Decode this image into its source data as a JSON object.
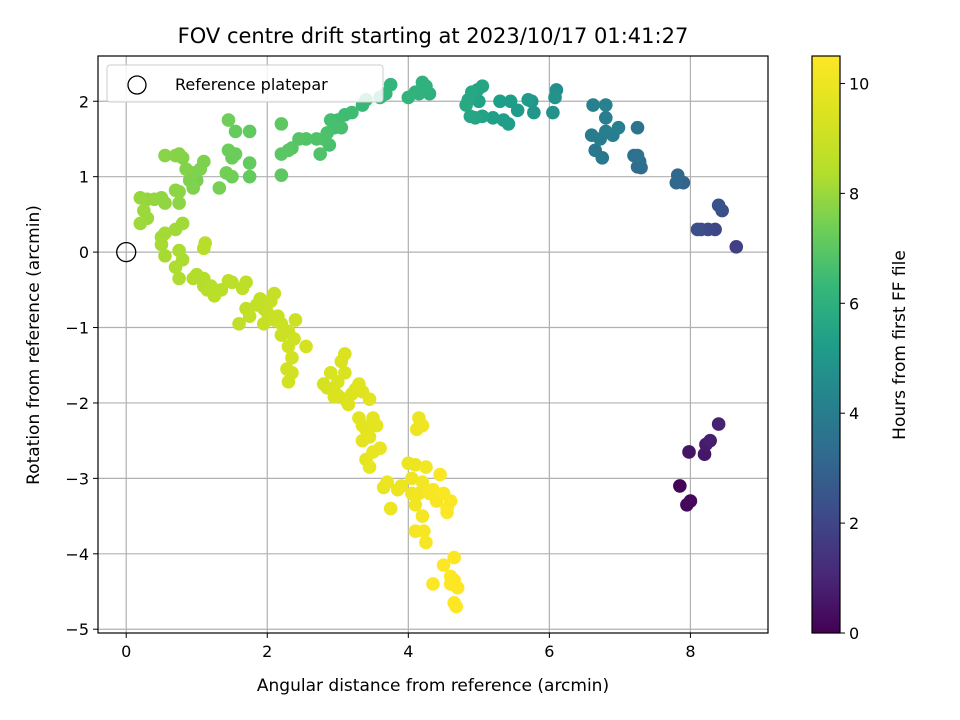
{
  "chart_data": {
    "type": "scatter",
    "title": "FOV centre drift starting at 2023/10/17 01:41:27",
    "xlabel": "Angular distance from reference (arcmin)",
    "ylabel": "Rotation from reference (arcmin)",
    "xlim": [
      -0.4,
      9.1
    ],
    "ylim": [
      -5.05,
      2.6
    ],
    "xticks": [
      0,
      2,
      4,
      6,
      8
    ],
    "yticks": [
      -5,
      -4,
      -3,
      -2,
      -1,
      0,
      1,
      2
    ],
    "grid": true,
    "legend": {
      "placement": "top-left",
      "entries": [
        "Reference platepar"
      ]
    },
    "reference_point": {
      "x": 0,
      "y": 0
    },
    "colorbar": {
      "label": "Hours from first FF file",
      "range": [
        0,
        10.5
      ],
      "ticks": [
        0,
        2,
        4,
        6,
        8,
        10
      ],
      "colormap": "viridis"
    },
    "points": [
      {
        "x": 7.85,
        "y": -3.1,
        "c": 0.1
      },
      {
        "x": 7.95,
        "y": -3.35,
        "c": 0.15
      },
      {
        "x": 8.0,
        "y": -3.3,
        "c": 0.2
      },
      {
        "x": 7.98,
        "y": -2.65,
        "c": 0.5
      },
      {
        "x": 8.2,
        "y": -2.68,
        "c": 0.6
      },
      {
        "x": 8.22,
        "y": -2.55,
        "c": 0.7
      },
      {
        "x": 8.28,
        "y": -2.5,
        "c": 0.8
      },
      {
        "x": 8.4,
        "y": -2.28,
        "c": 0.9
      },
      {
        "x": 8.65,
        "y": 0.07,
        "c": 1.8
      },
      {
        "x": 8.35,
        "y": 0.3,
        "c": 2.0
      },
      {
        "x": 8.25,
        "y": 0.3,
        "c": 2.1
      },
      {
        "x": 8.15,
        "y": 0.3,
        "c": 2.2
      },
      {
        "x": 8.1,
        "y": 0.3,
        "c": 2.3
      },
      {
        "x": 8.45,
        "y": 0.55,
        "c": 2.3
      },
      {
        "x": 8.4,
        "y": 0.62,
        "c": 2.4
      },
      {
        "x": 7.9,
        "y": 0.92,
        "c": 3.0
      },
      {
        "x": 7.8,
        "y": 0.92,
        "c": 3.1
      },
      {
        "x": 7.82,
        "y": 1.02,
        "c": 3.15
      },
      {
        "x": 7.3,
        "y": 1.12,
        "c": 3.3
      },
      {
        "x": 7.25,
        "y": 1.13,
        "c": 3.35
      },
      {
        "x": 7.28,
        "y": 1.2,
        "c": 3.4
      },
      {
        "x": 7.2,
        "y": 1.28,
        "c": 3.5
      },
      {
        "x": 7.25,
        "y": 1.28,
        "c": 3.55
      },
      {
        "x": 7.25,
        "y": 1.65,
        "c": 3.6
      },
      {
        "x": 6.75,
        "y": 1.25,
        "c": 3.8
      },
      {
        "x": 6.65,
        "y": 1.35,
        "c": 3.8
      },
      {
        "x": 6.72,
        "y": 1.5,
        "c": 3.9
      },
      {
        "x": 6.6,
        "y": 1.55,
        "c": 3.95
      },
      {
        "x": 6.8,
        "y": 1.6,
        "c": 4.0
      },
      {
        "x": 6.9,
        "y": 1.55,
        "c": 4.0
      },
      {
        "x": 6.8,
        "y": 1.78,
        "c": 4.05
      },
      {
        "x": 6.98,
        "y": 1.65,
        "c": 4.1
      },
      {
        "x": 6.62,
        "y": 1.95,
        "c": 4.1
      },
      {
        "x": 6.8,
        "y": 1.95,
        "c": 4.15
      },
      {
        "x": 6.1,
        "y": 2.15,
        "c": 4.7
      },
      {
        "x": 6.05,
        "y": 1.85,
        "c": 4.8
      },
      {
        "x": 6.08,
        "y": 2.05,
        "c": 4.8
      },
      {
        "x": 5.78,
        "y": 1.85,
        "c": 5.0
      },
      {
        "x": 5.75,
        "y": 2.0,
        "c": 5.0
      },
      {
        "x": 5.7,
        "y": 2.02,
        "c": 5.1
      },
      {
        "x": 5.55,
        "y": 1.88,
        "c": 5.15
      },
      {
        "x": 5.45,
        "y": 2.0,
        "c": 5.2
      },
      {
        "x": 5.42,
        "y": 1.7,
        "c": 5.25
      },
      {
        "x": 5.35,
        "y": 1.75,
        "c": 5.3
      },
      {
        "x": 5.3,
        "y": 2.0,
        "c": 5.3
      },
      {
        "x": 5.2,
        "y": 1.78,
        "c": 5.35
      },
      {
        "x": 5.05,
        "y": 1.8,
        "c": 5.4
      },
      {
        "x": 5.0,
        "y": 2.0,
        "c": 5.45
      },
      {
        "x": 4.98,
        "y": 2.15,
        "c": 5.5
      },
      {
        "x": 5.05,
        "y": 2.2,
        "c": 5.55
      },
      {
        "x": 4.95,
        "y": 1.78,
        "c": 5.55
      },
      {
        "x": 4.88,
        "y": 1.8,
        "c": 5.6
      },
      {
        "x": 4.85,
        "y": 2.02,
        "c": 5.6
      },
      {
        "x": 4.9,
        "y": 2.12,
        "c": 5.65
      },
      {
        "x": 4.82,
        "y": 1.95,
        "c": 5.7
      },
      {
        "x": 4.3,
        "y": 2.1,
        "c": 6.0
      },
      {
        "x": 4.2,
        "y": 2.25,
        "c": 6.05
      },
      {
        "x": 4.25,
        "y": 2.2,
        "c": 6.05
      },
      {
        "x": 4.15,
        "y": 2.1,
        "c": 6.1
      },
      {
        "x": 4.1,
        "y": 2.12,
        "c": 6.1
      },
      {
        "x": 4.0,
        "y": 2.05,
        "c": 6.15
      },
      {
        "x": 3.75,
        "y": 2.22,
        "c": 6.2
      },
      {
        "x": 3.68,
        "y": 2.1,
        "c": 6.2
      },
      {
        "x": 3.6,
        "y": 2.05,
        "c": 6.25
      },
      {
        "x": 3.4,
        "y": 2.02,
        "c": 6.3
      },
      {
        "x": 3.35,
        "y": 1.95,
        "c": 6.35
      },
      {
        "x": 3.2,
        "y": 1.85,
        "c": 6.5
      },
      {
        "x": 3.1,
        "y": 1.82,
        "c": 6.5
      },
      {
        "x": 3.0,
        "y": 1.75,
        "c": 6.55
      },
      {
        "x": 2.95,
        "y": 1.65,
        "c": 6.6
      },
      {
        "x": 2.9,
        "y": 1.75,
        "c": 6.6
      },
      {
        "x": 3.05,
        "y": 1.65,
        "c": 6.65
      },
      {
        "x": 2.85,
        "y": 1.58,
        "c": 6.7
      },
      {
        "x": 2.88,
        "y": 1.42,
        "c": 6.7
      },
      {
        "x": 2.8,
        "y": 1.5,
        "c": 6.75
      },
      {
        "x": 2.7,
        "y": 1.5,
        "c": 6.8
      },
      {
        "x": 2.75,
        "y": 1.3,
        "c": 6.8
      },
      {
        "x": 2.55,
        "y": 1.5,
        "c": 6.85
      },
      {
        "x": 2.45,
        "y": 1.5,
        "c": 6.9
      },
      {
        "x": 2.35,
        "y": 1.38,
        "c": 6.95
      },
      {
        "x": 2.3,
        "y": 1.35,
        "c": 7.0
      },
      {
        "x": 2.2,
        "y": 1.3,
        "c": 7.0
      },
      {
        "x": 2.2,
        "y": 1.02,
        "c": 7.05
      },
      {
        "x": 2.2,
        "y": 1.7,
        "c": 7.05
      },
      {
        "x": 1.75,
        "y": 1.6,
        "c": 7.1
      },
      {
        "x": 1.75,
        "y": 1.18,
        "c": 7.15
      },
      {
        "x": 1.75,
        "y": 1.0,
        "c": 7.15
      },
      {
        "x": 1.55,
        "y": 1.6,
        "c": 7.2
      },
      {
        "x": 1.55,
        "y": 1.3,
        "c": 7.25
      },
      {
        "x": 1.5,
        "y": 1.25,
        "c": 7.25
      },
      {
        "x": 1.45,
        "y": 1.35,
        "c": 7.3
      },
      {
        "x": 1.45,
        "y": 1.75,
        "c": 7.35
      },
      {
        "x": 1.5,
        "y": 1.0,
        "c": 7.35
      },
      {
        "x": 1.42,
        "y": 1.05,
        "c": 7.4
      },
      {
        "x": 1.32,
        "y": 0.85,
        "c": 7.45
      },
      {
        "x": 1.0,
        "y": 0.95,
        "c": 7.5
      },
      {
        "x": 0.9,
        "y": 0.95,
        "c": 7.55
      },
      {
        "x": 0.95,
        "y": 1.05,
        "c": 7.6
      },
      {
        "x": 1.05,
        "y": 1.1,
        "c": 7.6
      },
      {
        "x": 0.85,
        "y": 1.1,
        "c": 7.65
      },
      {
        "x": 0.8,
        "y": 1.25,
        "c": 7.65
      },
      {
        "x": 0.75,
        "y": 1.3,
        "c": 7.7
      },
      {
        "x": 0.7,
        "y": 1.28,
        "c": 7.7
      },
      {
        "x": 0.55,
        "y": 1.28,
        "c": 7.75
      },
      {
        "x": 0.75,
        "y": 0.8,
        "c": 7.75
      },
      {
        "x": 0.7,
        "y": 0.82,
        "c": 7.8
      },
      {
        "x": 0.75,
        "y": 0.65,
        "c": 7.8
      },
      {
        "x": 0.55,
        "y": 0.65,
        "c": 7.85
      },
      {
        "x": 0.5,
        "y": 0.72,
        "c": 7.85
      },
      {
        "x": 0.4,
        "y": 0.7,
        "c": 7.9
      },
      {
        "x": 0.3,
        "y": 0.7,
        "c": 7.9
      },
      {
        "x": 0.2,
        "y": 0.72,
        "c": 7.95
      },
      {
        "x": 0.25,
        "y": 0.55,
        "c": 8.0
      },
      {
        "x": 0.3,
        "y": 0.45,
        "c": 8.0
      },
      {
        "x": 0.2,
        "y": 0.38,
        "c": 8.05
      },
      {
        "x": 1.1,
        "y": 1.2,
        "c": 7.55
      },
      {
        "x": 0.95,
        "y": 0.85,
        "c": 7.6
      },
      {
        "x": 0.8,
        "y": 0.38,
        "c": 8.1
      },
      {
        "x": 0.7,
        "y": 0.3,
        "c": 8.1
      },
      {
        "x": 0.55,
        "y": 0.25,
        "c": 8.15
      },
      {
        "x": 0.5,
        "y": 0.2,
        "c": 8.15
      },
      {
        "x": 0.5,
        "y": 0.1,
        "c": 8.2
      },
      {
        "x": 0.55,
        "y": -0.05,
        "c": 8.2
      },
      {
        "x": 0.75,
        "y": 0.02,
        "c": 8.25
      },
      {
        "x": 0.8,
        "y": -0.1,
        "c": 8.25
      },
      {
        "x": 0.7,
        "y": -0.2,
        "c": 8.3
      },
      {
        "x": 0.75,
        "y": -0.35,
        "c": 8.3
      },
      {
        "x": 0.95,
        "y": -0.35,
        "c": 8.35
      },
      {
        "x": 1.0,
        "y": -0.3,
        "c": 8.35
      },
      {
        "x": 1.1,
        "y": -0.35,
        "c": 8.4
      },
      {
        "x": 1.1,
        "y": -0.45,
        "c": 8.4
      },
      {
        "x": 1.15,
        "y": -0.5,
        "c": 8.45
      },
      {
        "x": 1.2,
        "y": -0.45,
        "c": 8.45
      },
      {
        "x": 1.1,
        "y": 0.05,
        "c": 8.5
      },
      {
        "x": 1.12,
        "y": 0.12,
        "c": 8.5
      },
      {
        "x": 1.25,
        "y": -0.58,
        "c": 8.55
      },
      {
        "x": 1.35,
        "y": -0.5,
        "c": 8.55
      },
      {
        "x": 1.45,
        "y": -0.38,
        "c": 8.6
      },
      {
        "x": 1.5,
        "y": -0.4,
        "c": 8.6
      },
      {
        "x": 1.65,
        "y": -0.48,
        "c": 8.65
      },
      {
        "x": 1.7,
        "y": -0.4,
        "c": 8.65
      },
      {
        "x": 1.6,
        "y": -0.95,
        "c": 8.7
      },
      {
        "x": 1.7,
        "y": -0.75,
        "c": 8.7
      },
      {
        "x": 1.75,
        "y": -0.85,
        "c": 8.75
      },
      {
        "x": 1.85,
        "y": -0.7,
        "c": 8.75
      },
      {
        "x": 1.9,
        "y": -0.62,
        "c": 8.8
      },
      {
        "x": 1.95,
        "y": -0.75,
        "c": 8.8
      },
      {
        "x": 2.0,
        "y": -0.8,
        "c": 8.85
      },
      {
        "x": 2.05,
        "y": -0.65,
        "c": 8.85
      },
      {
        "x": 2.1,
        "y": -0.55,
        "c": 8.9
      },
      {
        "x": 1.95,
        "y": -0.95,
        "c": 8.9
      },
      {
        "x": 2.1,
        "y": -0.9,
        "c": 8.95
      },
      {
        "x": 2.15,
        "y": -0.85,
        "c": 8.95
      },
      {
        "x": 2.2,
        "y": -0.95,
        "c": 9.0
      },
      {
        "x": 2.2,
        "y": -1.1,
        "c": 9.0
      },
      {
        "x": 2.3,
        "y": -1.05,
        "c": 9.05
      },
      {
        "x": 2.4,
        "y": -0.9,
        "c": 9.05
      },
      {
        "x": 2.38,
        "y": -1.15,
        "c": 9.1
      },
      {
        "x": 2.3,
        "y": -1.25,
        "c": 9.1
      },
      {
        "x": 2.35,
        "y": -1.4,
        "c": 9.15
      },
      {
        "x": 2.28,
        "y": -1.55,
        "c": 9.15
      },
      {
        "x": 2.35,
        "y": -1.6,
        "c": 9.2
      },
      {
        "x": 2.3,
        "y": -1.72,
        "c": 9.2
      },
      {
        "x": 2.55,
        "y": -1.25,
        "c": 9.25
      },
      {
        "x": 2.8,
        "y": -1.75,
        "c": 9.3
      },
      {
        "x": 2.85,
        "y": -1.8,
        "c": 9.3
      },
      {
        "x": 2.9,
        "y": -1.6,
        "c": 9.35
      },
      {
        "x": 2.95,
        "y": -1.85,
        "c": 9.35
      },
      {
        "x": 3.0,
        "y": -1.72,
        "c": 9.4
      },
      {
        "x": 3.05,
        "y": -1.45,
        "c": 9.4
      },
      {
        "x": 3.1,
        "y": -1.35,
        "c": 9.45
      },
      {
        "x": 2.95,
        "y": -1.92,
        "c": 9.45
      },
      {
        "x": 3.1,
        "y": -1.95,
        "c": 9.5
      },
      {
        "x": 3.15,
        "y": -2.02,
        "c": 9.5
      },
      {
        "x": 3.2,
        "y": -1.88,
        "c": 9.55
      },
      {
        "x": 3.25,
        "y": -1.82,
        "c": 9.55
      },
      {
        "x": 3.3,
        "y": -1.75,
        "c": 9.6
      },
      {
        "x": 3.35,
        "y": -1.85,
        "c": 9.6
      },
      {
        "x": 3.45,
        "y": -1.95,
        "c": 9.65
      },
      {
        "x": 3.3,
        "y": -2.2,
        "c": 9.65
      },
      {
        "x": 3.35,
        "y": -2.3,
        "c": 9.7
      },
      {
        "x": 3.4,
        "y": -2.35,
        "c": 9.7
      },
      {
        "x": 3.5,
        "y": -2.2,
        "c": 9.75
      },
      {
        "x": 3.55,
        "y": -2.3,
        "c": 9.75
      },
      {
        "x": 3.45,
        "y": -2.45,
        "c": 9.8
      },
      {
        "x": 3.4,
        "y": -2.75,
        "c": 9.8
      },
      {
        "x": 3.45,
        "y": -2.85,
        "c": 9.85
      },
      {
        "x": 3.5,
        "y": -2.65,
        "c": 9.85
      },
      {
        "x": 3.6,
        "y": -2.6,
        "c": 9.9
      },
      {
        "x": 3.65,
        "y": -3.12,
        "c": 9.9
      },
      {
        "x": 3.7,
        "y": -3.05,
        "c": 9.95
      },
      {
        "x": 3.75,
        "y": -3.4,
        "c": 9.95
      },
      {
        "x": 3.85,
        "y": -3.15,
        "c": 10.0
      },
      {
        "x": 3.35,
        "y": -2.5,
        "c": 9.8
      },
      {
        "x": 3.1,
        "y": -1.6,
        "c": 9.4
      },
      {
        "x": 3.0,
        "y": -1.9,
        "c": 9.45
      },
      {
        "x": 3.9,
        "y": -3.1,
        "c": 10.0
      },
      {
        "x": 4.0,
        "y": -2.8,
        "c": 10.05
      },
      {
        "x": 4.1,
        "y": -2.82,
        "c": 10.05
      },
      {
        "x": 4.05,
        "y": -3.0,
        "c": 10.1
      },
      {
        "x": 4.05,
        "y": -3.2,
        "c": 10.1
      },
      {
        "x": 4.1,
        "y": -3.35,
        "c": 10.15
      },
      {
        "x": 4.15,
        "y": -3.2,
        "c": 10.15
      },
      {
        "x": 4.2,
        "y": -3.05,
        "c": 10.2
      },
      {
        "x": 4.25,
        "y": -2.85,
        "c": 10.2
      },
      {
        "x": 4.2,
        "y": -3.5,
        "c": 10.25
      },
      {
        "x": 4.1,
        "y": -3.7,
        "c": 10.25
      },
      {
        "x": 4.22,
        "y": -3.7,
        "c": 10.3
      },
      {
        "x": 4.25,
        "y": -3.85,
        "c": 10.3
      },
      {
        "x": 4.3,
        "y": -3.2,
        "c": 10.3
      },
      {
        "x": 4.35,
        "y": -3.15,
        "c": 10.35
      },
      {
        "x": 4.4,
        "y": -3.3,
        "c": 10.35
      },
      {
        "x": 4.5,
        "y": -3.2,
        "c": 10.4
      },
      {
        "x": 4.55,
        "y": -3.4,
        "c": 10.4
      },
      {
        "x": 4.45,
        "y": -2.95,
        "c": 10.4
      },
      {
        "x": 4.15,
        "y": -2.2,
        "c": 10.05
      },
      {
        "x": 4.12,
        "y": -2.35,
        "c": 10.05
      },
      {
        "x": 4.2,
        "y": -2.3,
        "c": 10.1
      },
      {
        "x": 4.6,
        "y": -3.3,
        "c": 10.4
      },
      {
        "x": 4.55,
        "y": -3.45,
        "c": 10.45
      },
      {
        "x": 4.5,
        "y": -4.15,
        "c": 10.45
      },
      {
        "x": 4.35,
        "y": -4.4,
        "c": 10.45
      },
      {
        "x": 4.6,
        "y": -4.3,
        "c": 10.5
      },
      {
        "x": 4.65,
        "y": -4.05,
        "c": 10.5
      },
      {
        "x": 4.6,
        "y": -4.4,
        "c": 10.5
      },
      {
        "x": 4.65,
        "y": -4.35,
        "c": 10.5
      },
      {
        "x": 4.7,
        "y": -4.45,
        "c": 10.5
      },
      {
        "x": 4.65,
        "y": -4.65,
        "c": 10.5
      },
      {
        "x": 4.68,
        "y": -4.7,
        "c": 10.5
      }
    ]
  }
}
